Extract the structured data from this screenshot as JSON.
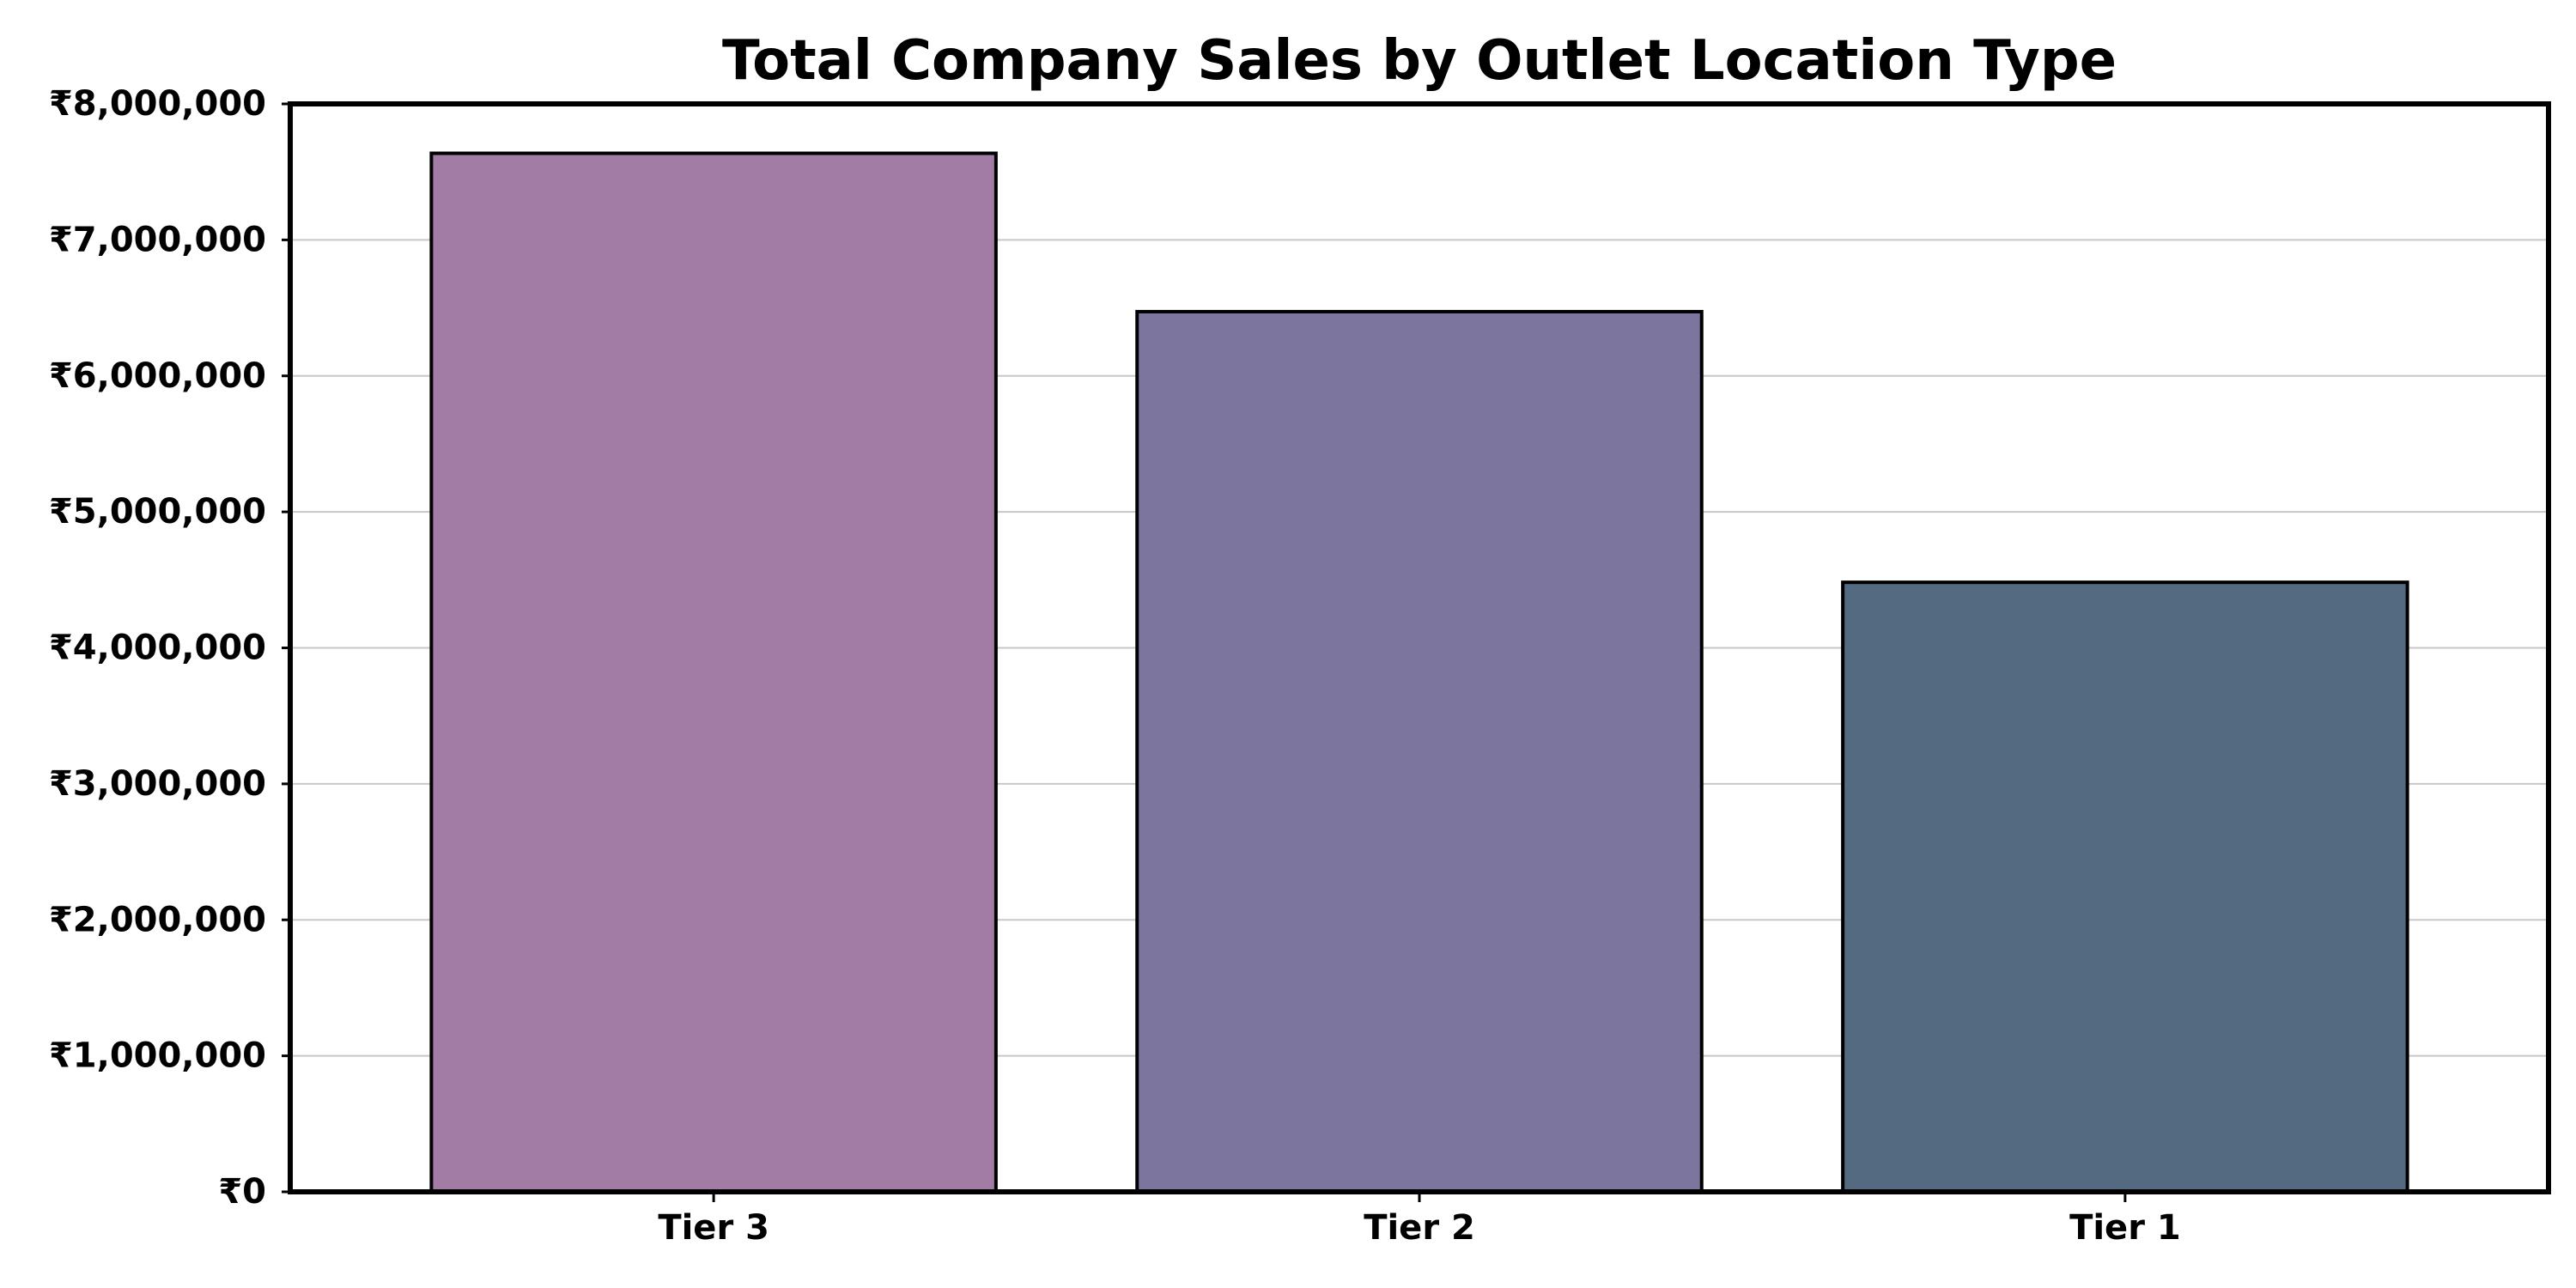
{
  "chart_data": {
    "type": "bar",
    "title": "Total Company Sales by Outlet Location Type",
    "xlabel": "",
    "ylabel": "",
    "categories": [
      "Tier 3",
      "Tier 2",
      "Tier 1"
    ],
    "values": [
      7636753,
      6472314,
      4482059
    ],
    "colors": [
      "#a27ca4",
      "#7c759e",
      "#536a81"
    ],
    "ylim": [
      0,
      8000000
    ],
    "yticks": [
      0,
      1000000,
      2000000,
      3000000,
      4000000,
      5000000,
      6000000,
      7000000,
      8000000
    ],
    "ytick_labels": [
      "₹0",
      "₹1,000,000",
      "₹2,000,000",
      "₹3,000,000",
      "₹4,000,000",
      "₹5,000,000",
      "₹6,000,000",
      "₹7,000,000",
      "₹8,000,000"
    ],
    "grid": "horizontal",
    "legend": "none"
  }
}
